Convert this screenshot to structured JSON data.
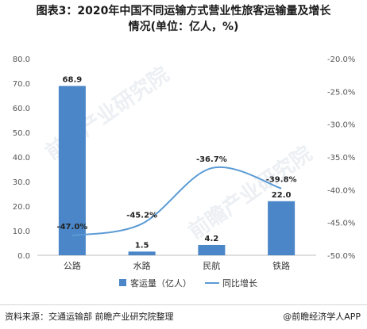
{
  "title_line1": "图表3：2020年中国不同运输方式营业性旅客运输量及增长",
  "title_line2": "情况(单位：亿人，%)",
  "source": "资料来源：交通运输部 前瞻产业研究院整理",
  "brand": "@前瞻经济学人APP",
  "watermark": "前瞻产业研究院",
  "colors": {
    "bar": "#4a86c8",
    "line": "#5b9bd5",
    "axis": "#bfbfbf"
  },
  "chart_data": {
    "type": "bar",
    "categories": [
      "公路",
      "水路",
      "民航",
      "铁路"
    ],
    "series": [
      {
        "name": "客运量（亿人）",
        "type": "bar",
        "axis": "left",
        "values": [
          68.9,
          1.5,
          4.2,
          22.0
        ],
        "labels": [
          "68.9",
          "1.5",
          "4.2",
          "22.0"
        ]
      },
      {
        "name": "同比增长",
        "type": "line",
        "axis": "right",
        "values": [
          -47.0,
          -45.2,
          -36.7,
          -39.8
        ],
        "labels": [
          "-47.0%",
          "-45.2%",
          "-36.7%",
          "-39.8%"
        ]
      }
    ],
    "y_left": {
      "min": 0,
      "max": 80,
      "step": 10,
      "ticks": [
        "0.0",
        "10.0",
        "20.0",
        "30.0",
        "40.0",
        "50.0",
        "60.0",
        "70.0",
        "80.0"
      ]
    },
    "y_right": {
      "min": -50,
      "max": -20,
      "step": 5,
      "ticks": [
        "-50.0%",
        "-45.0%",
        "-40.0%",
        "-35.0%",
        "-30.0%",
        "-25.0%",
        "-20.0%"
      ]
    },
    "legend": "bottom",
    "grid": false
  }
}
